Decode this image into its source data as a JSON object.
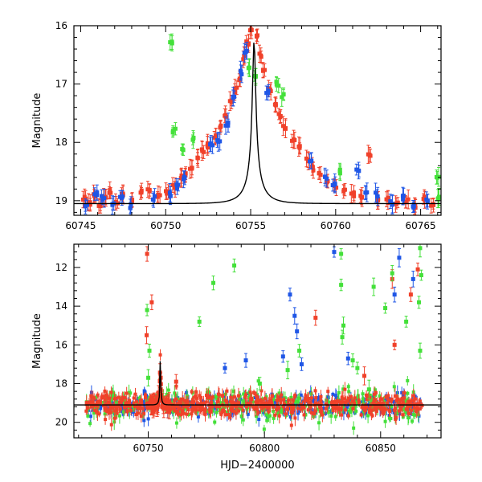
{
  "colors": {
    "red": "#f0412a",
    "blue": "#1f56e6",
    "green": "#44e03a",
    "model": "#000000"
  },
  "chart_data": [
    {
      "type": "scatter",
      "title": "",
      "xlabel": "",
      "ylabel": "Magnitude",
      "xlim": [
        60744.6,
        60766.2
      ],
      "ylim": [
        19.25,
        16.0
      ],
      "y_inverted": true,
      "grid": false,
      "x_ticks": [
        60745,
        60750,
        60755,
        60760,
        60765
      ],
      "y_ticks": [
        16,
        17,
        18,
        19
      ],
      "model": {
        "t0": 60755.2,
        "peak_mag": 16.25,
        "baseline_mag": 19.05,
        "tE": 1.2
      },
      "series": [
        {
          "color": "red",
          "points": [
            [
              60745.2,
              18.95
            ],
            [
              60745.5,
              19.05
            ],
            [
              60745.8,
              18.9
            ],
            [
              60746.1,
              19.1
            ],
            [
              60746.4,
              18.95
            ],
            [
              60746.7,
              18.85
            ],
            [
              60747.1,
              19.05
            ],
            [
              60747.5,
              18.9
            ],
            [
              60748.0,
              19.0
            ],
            [
              60748.5,
              18.85
            ],
            [
              60749.0,
              18.8
            ],
            [
              60749.6,
              18.9
            ],
            [
              60750.1,
              18.85
            ],
            [
              60750.5,
              18.75
            ],
            [
              60750.9,
              18.6
            ],
            [
              60751.2,
              18.55
            ],
            [
              60751.5,
              18.45
            ],
            [
              60751.9,
              18.3
            ],
            [
              60752.2,
              18.15
            ],
            [
              60752.5,
              18.05
            ],
            [
              60752.9,
              17.9
            ],
            [
              60753.2,
              17.75
            ],
            [
              60753.5,
              17.55
            ],
            [
              60753.8,
              17.3
            ],
            [
              60754.1,
              17.1
            ],
            [
              60754.3,
              16.9
            ],
            [
              60754.6,
              16.55
            ],
            [
              60754.8,
              16.3
            ],
            [
              60755.0,
              16.05
            ],
            [
              60755.4,
              16.2
            ],
            [
              60755.6,
              16.5
            ],
            [
              60755.8,
              16.75
            ],
            [
              60756.1,
              17.1
            ],
            [
              60756.4,
              17.35
            ],
            [
              60756.7,
              17.55
            ],
            [
              60757.0,
              17.75
            ],
            [
              60757.5,
              17.95
            ],
            [
              60757.9,
              18.1
            ],
            [
              60758.3,
              18.3
            ],
            [
              60758.7,
              18.45
            ],
            [
              60759.1,
              18.55
            ],
            [
              60759.5,
              18.65
            ],
            [
              60760.0,
              18.75
            ],
            [
              60760.5,
              18.85
            ],
            [
              60761.0,
              18.9
            ],
            [
              60761.5,
              18.95
            ],
            [
              60762.0,
              18.2
            ],
            [
              60762.5,
              19.0
            ],
            [
              60763.0,
              18.95
            ],
            [
              60763.6,
              19.05
            ],
            [
              60764.2,
              19.0
            ],
            [
              60764.7,
              19.1
            ],
            [
              60765.2,
              18.95
            ],
            [
              60765.7,
              19.05
            ]
          ]
        },
        {
          "color": "blue",
          "points": [
            [
              60745.3,
              19.1
            ],
            [
              60745.9,
              18.9
            ],
            [
              60746.3,
              18.95
            ],
            [
              60746.9,
              19.05
            ],
            [
              60747.4,
              18.95
            ],
            [
              60747.9,
              19.1
            ],
            [
              60749.3,
              18.95
            ],
            [
              60750.2,
              18.9
            ],
            [
              60750.7,
              18.75
            ],
            [
              60751.1,
              18.6
            ],
            [
              60752.7,
              18.05
            ],
            [
              60753.1,
              17.95
            ],
            [
              60753.6,
              17.7
            ],
            [
              60754.0,
              17.2
            ],
            [
              60754.4,
              16.8
            ],
            [
              60754.7,
              16.45
            ],
            [
              60756.0,
              17.15
            ],
            [
              60758.5,
              18.35
            ],
            [
              60759.4,
              18.6
            ],
            [
              60759.9,
              18.7
            ],
            [
              60761.3,
              18.5
            ],
            [
              60761.8,
              18.85
            ],
            [
              60762.4,
              18.9
            ],
            [
              60763.3,
              19.05
            ],
            [
              60764.0,
              18.95
            ],
            [
              60764.6,
              19.1
            ],
            [
              60765.4,
              19.0
            ]
          ]
        },
        {
          "color": "green",
          "points": [
            [
              60750.3,
              16.3
            ],
            [
              60750.5,
              17.8
            ],
            [
              60751.0,
              18.1
            ],
            [
              60751.6,
              17.95
            ],
            [
              60754.9,
              16.7
            ],
            [
              60755.3,
              16.9
            ],
            [
              60756.6,
              17.0
            ],
            [
              60756.9,
              17.2
            ],
            [
              60760.3,
              18.5
            ],
            [
              60766.0,
              18.6
            ],
            [
              60766.1,
              18.95
            ]
          ]
        }
      ]
    },
    {
      "type": "scatter",
      "title": "",
      "xlabel": "HJD−2400000",
      "ylabel": "Magnitude",
      "xlim": [
        60718,
        60876
      ],
      "ylim": [
        20.8,
        10.8
      ],
      "y_inverted": true,
      "grid": false,
      "x_ticks": [
        60750,
        60800,
        60850
      ],
      "y_ticks": [
        12,
        14,
        16,
        18,
        20
      ],
      "model": {
        "t0": 60755.2,
        "peak_mag": 16.25,
        "baseline_mag": 19.1,
        "tE": 1.2
      },
      "outliers": [
        {
          "color": "red",
          "points": [
            [
              60749.5,
              11.3
            ],
            [
              60751.5,
              13.8
            ],
            [
              60749.3,
              15.5
            ],
            [
              60762.0,
              17.9
            ],
            [
              60822.0,
              14.6
            ],
            [
              60843.0,
              17.6
            ],
            [
              60855.0,
              12.6
            ],
            [
              60863.0,
              13.4
            ],
            [
              60856.0,
              16.0
            ],
            [
              60866.0,
              12.1
            ]
          ]
        },
        {
          "color": "blue",
          "points": [
            [
              60811.0,
              13.4
            ],
            [
              60814.0,
              15.3
            ],
            [
              60813.0,
              14.5
            ],
            [
              60830.0,
              11.2
            ],
            [
              60836.0,
              16.7
            ],
            [
              60856.0,
              13.4
            ],
            [
              60858.0,
              11.5
            ],
            [
              60864.0,
              12.6
            ],
            [
              60816.0,
              17.0
            ],
            [
              60808.0,
              16.6
            ],
            [
              60783.0,
              17.2
            ],
            [
              60792.0,
              16.8
            ]
          ]
        },
        {
          "color": "green",
          "points": [
            [
              60749.5,
              14.2
            ],
            [
              60750.5,
              16.3
            ],
            [
              60772.0,
              14.8
            ],
            [
              60778.0,
              12.8
            ],
            [
              60787.0,
              11.9
            ],
            [
              60833.0,
              11.3
            ],
            [
              60833.0,
              12.9
            ],
            [
              60834.0,
              15.0
            ],
            [
              60833.5,
              15.6
            ],
            [
              60838.0,
              16.8
            ],
            [
              60847.0,
              13.0
            ],
            [
              60852.0,
              14.1
            ],
            [
              60855.0,
              12.3
            ],
            [
              60861.0,
              14.8
            ],
            [
              60867.0,
              11.0
            ],
            [
              60867.5,
              12.4
            ],
            [
              60866.5,
              13.8
            ],
            [
              60867.0,
              16.3
            ],
            [
              60840.0,
              17.2
            ],
            [
              60845.0,
              18.3
            ],
            [
              60750.0,
              17.7
            ],
            [
              60798.0,
              18.0
            ],
            [
              60810.0,
              17.3
            ],
            [
              60815.0,
              16.3
            ]
          ]
        }
      ],
      "baseline_range": [
        60723,
        60868
      ],
      "baseline_scatter": 0.55,
      "series": [
        {
          "name": "",
          "color": "red"
        },
        {
          "name": "",
          "color": "blue"
        },
        {
          "name": "",
          "color": "green"
        }
      ]
    }
  ]
}
